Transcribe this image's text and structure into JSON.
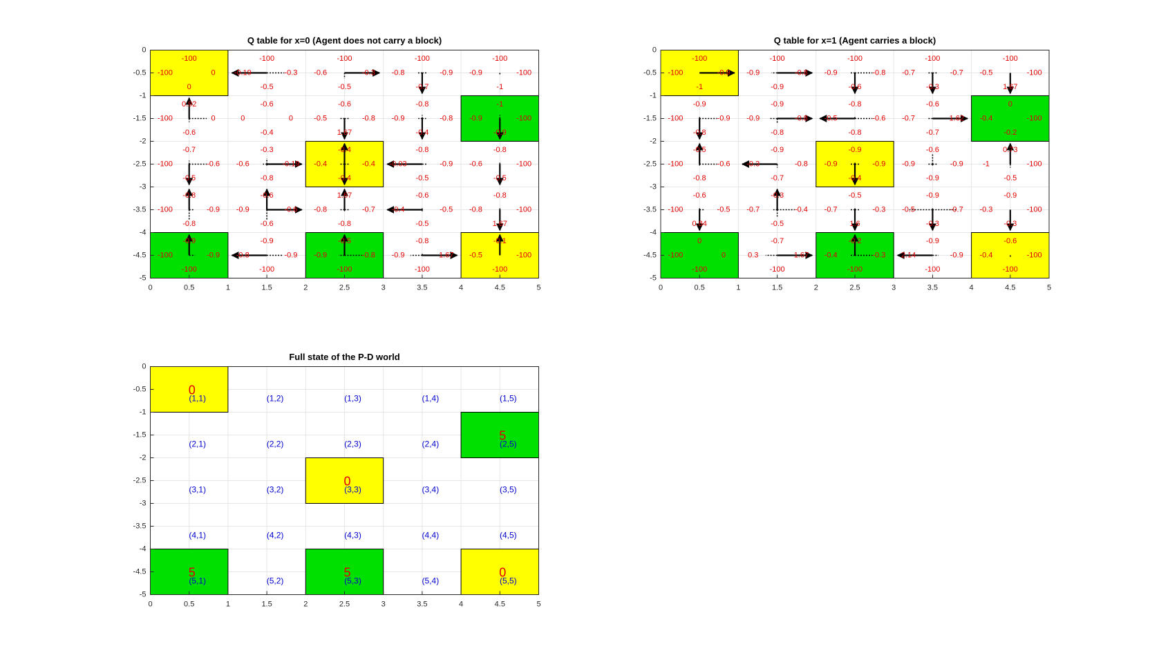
{
  "colors": {
    "pickup": "#ffff00",
    "dropoff": "#00e000",
    "qvalue_text": "#e00000",
    "coord_text": "#0000cc",
    "block_text": "#e00000",
    "grid": "#e6e6e6",
    "axes": "#262626",
    "arrow": "#000000"
  },
  "chart_data": [
    {
      "type": "heatmap",
      "title": "Q table for x=0 (Agent does not carry a block)",
      "xlim": [
        0,
        5
      ],
      "ylim": [
        -5,
        0
      ],
      "xticks": [
        "0",
        "0.5",
        "1",
        "1.5",
        "2",
        "2.5",
        "3",
        "3.5",
        "4",
        "4.5",
        "5"
      ],
      "yticks": [
        "0",
        "-0.5",
        "-1",
        "-1.5",
        "-2",
        "-2.5",
        "-3",
        "-3.5",
        "-4",
        "-4.5",
        "-5"
      ],
      "grid": true,
      "cells": [
        {
          "r": 1,
          "c": 1,
          "type": "pickup",
          "n": "-100",
          "w": "-100",
          "e": "0",
          "s": "0",
          "arrows": {
            "n": 0,
            "w": 0,
            "e": 0,
            "s": 0
          }
        },
        {
          "r": 1,
          "c": 2,
          "type": "",
          "n": "-100",
          "w": "-0.19",
          "e": "-0.3",
          "s": "-0.5",
          "arrows": {
            "n": 0,
            "w": 0.9,
            "e": 0.45,
            "s": 0
          }
        },
        {
          "r": 1,
          "c": 3,
          "type": "",
          "n": "-100",
          "w": "-0.6",
          "e": "-0.3",
          "s": "-0.5",
          "arrows": {
            "n": 0,
            "w": 0,
            "e": 0.9,
            "s": 0.25
          }
        },
        {
          "r": 1,
          "c": 4,
          "type": "",
          "n": "-100",
          "w": "-0.8",
          "e": "-0.9",
          "s": "-0.7",
          "arrows": {
            "n": 0,
            "w": 0.12,
            "e": 0.12,
            "s": 0.9
          }
        },
        {
          "r": 1,
          "c": 5,
          "type": "",
          "n": "-100",
          "w": "-0.9",
          "e": "-100",
          "s": "-1",
          "arrows": {
            "n": 0,
            "w": 0,
            "e": 0,
            "s": 0.1
          }
        },
        {
          "r": 2,
          "c": 1,
          "type": "",
          "n": "0.92",
          "w": "-100",
          "e": "0",
          "s": "-0.6",
          "arrows": {
            "n": 0.9,
            "w": 0,
            "e": 0.45,
            "s": 0.15
          }
        },
        {
          "r": 2,
          "c": 2,
          "type": "",
          "n": "-0.6",
          "w": "0",
          "e": "0",
          "s": "-0.4",
          "arrows": {
            "n": 0,
            "w": 0,
            "e": 0,
            "s": 0
          }
        },
        {
          "r": 2,
          "c": 3,
          "type": "",
          "n": "-0.6",
          "w": "-0.5",
          "e": "-0.8",
          "s": "1.67",
          "arrows": {
            "n": 0,
            "w": 0.12,
            "e": 0.12,
            "s": 0.9
          }
        },
        {
          "r": 2,
          "c": 4,
          "type": "",
          "n": "-0.8",
          "w": "-0.9",
          "e": "-0.8",
          "s": "-0.4",
          "arrows": {
            "n": 0.15,
            "w": 0.1,
            "e": 0.1,
            "s": 0.9
          }
        },
        {
          "r": 2,
          "c": 5,
          "type": "dropoff",
          "n": "-1",
          "w": "-0.9",
          "e": "-100",
          "s": "-0.9",
          "arrows": {
            "n": 0.15,
            "w": 0,
            "e": 0,
            "s": 0.9
          }
        },
        {
          "r": 3,
          "c": 1,
          "type": "",
          "n": "-0.7",
          "w": "-100",
          "e": "-0.6",
          "s": "-0.5",
          "arrows": {
            "n": 0.15,
            "w": 0,
            "e": 0.45,
            "s": 0.9
          }
        },
        {
          "r": 3,
          "c": 2,
          "type": "",
          "n": "-0.3",
          "w": "-0.6",
          "e": "-0.19",
          "s": "-0.8",
          "arrows": {
            "n": 0.25,
            "w": 0.1,
            "e": 0.9,
            "s": 0.1
          }
        },
        {
          "r": 3,
          "c": 3,
          "type": "pickup",
          "n": "-0.4",
          "w": "-0.4",
          "e": "-0.4",
          "s": "-0.4",
          "arrows": {
            "n": 0.9,
            "w": 0.12,
            "e": 0.12,
            "s": 0.9
          }
        },
        {
          "r": 3,
          "c": 4,
          "type": "",
          "n": "-0.8",
          "w": "-0.03",
          "e": "-0.9",
          "s": "-0.5",
          "arrows": {
            "n": 0,
            "w": 0.9,
            "e": 0.12,
            "s": 0
          }
        },
        {
          "r": 3,
          "c": 5,
          "type": "",
          "n": "-0.8",
          "w": "-0.6",
          "e": "-100",
          "s": "-0.5",
          "arrows": {
            "n": 0.1,
            "w": 0,
            "e": 0,
            "s": 0.9
          }
        },
        {
          "r": 4,
          "c": 1,
          "type": "",
          "n": "-0.8",
          "w": "-100",
          "e": "-0.9",
          "s": "-0.8",
          "arrows": {
            "n": 0.9,
            "w": 0,
            "e": 0.12,
            "s": 0.45
          }
        },
        {
          "r": 4,
          "c": 2,
          "type": "",
          "n": "-0.6",
          "w": "-0.9",
          "e": "-0.6",
          "s": "-0.6",
          "arrows": {
            "n": 0.9,
            "w": 0,
            "e": 0.9,
            "s": 0.45
          }
        },
        {
          "r": 4,
          "c": 3,
          "type": "",
          "n": "1.67",
          "w": "-0.8",
          "e": "-0.7",
          "s": "-0.8",
          "arrows": {
            "n": 0.9,
            "w": 0.12,
            "e": 0.12,
            "s": 0.12
          }
        },
        {
          "r": 4,
          "c": 4,
          "type": "",
          "n": "-0.6",
          "w": "-0.4",
          "e": "-0.5",
          "s": "-0.5",
          "arrows": {
            "n": 0.1,
            "w": 0.9,
            "e": 0,
            "s": 0.12
          }
        },
        {
          "r": 4,
          "c": 5,
          "type": "",
          "n": "-0.8",
          "w": "-0.8",
          "e": "-100",
          "s": "1.67",
          "arrows": {
            "n": 0.1,
            "w": 0,
            "e": 0,
            "s": 0.9
          }
        },
        {
          "r": 5,
          "c": 1,
          "type": "dropoff",
          "n": "-0.9",
          "w": "-100",
          "e": "-0.9",
          "s": "-100",
          "arrows": {
            "n": 0.9,
            "w": 0,
            "e": 0.15,
            "s": 0
          }
        },
        {
          "r": 5,
          "c": 2,
          "type": "",
          "n": "-0.9",
          "w": "-0.8",
          "e": "-0.9",
          "s": "-100",
          "arrows": {
            "n": 0,
            "w": 0.9,
            "e": 0.4,
            "s": 0
          }
        },
        {
          "r": 5,
          "c": 3,
          "type": "dropoff",
          "n": "-0.5",
          "w": "-0.9",
          "e": "-0.8",
          "s": "-100",
          "arrows": {
            "n": 0.9,
            "w": 0.15,
            "e": 0.45,
            "s": 0
          }
        },
        {
          "r": 5,
          "c": 4,
          "type": "",
          "n": "-0.8",
          "w": "-0.9",
          "e": "1.67",
          "s": "-100",
          "arrows": {
            "n": 0.12,
            "w": 0.3,
            "e": 0.9,
            "s": 0
          }
        },
        {
          "r": 5,
          "c": 5,
          "type": "pickup",
          "n": "-0.1",
          "w": "-0.5",
          "e": "-100",
          "s": "-100",
          "arrows": {
            "n": 0.9,
            "w": 0,
            "e": 0,
            "s": 0
          }
        }
      ]
    },
    {
      "type": "heatmap",
      "title": "Q table for x=1 (Agent carries a block)",
      "xlim": [
        0,
        5
      ],
      "ylim": [
        -5,
        0
      ],
      "xticks": [
        "0",
        "0.5",
        "1",
        "1.5",
        "2",
        "2.5",
        "3",
        "3.5",
        "4",
        "4.5",
        "5"
      ],
      "yticks": [
        "0",
        "-0.5",
        "-1",
        "-1.5",
        "-2",
        "-2.5",
        "-3",
        "-3.5",
        "-4",
        "-4.5",
        "-5"
      ],
      "grid": true,
      "cells": [
        {
          "r": 1,
          "c": 1,
          "type": "pickup",
          "n": "-100",
          "w": "-100",
          "e": "-0.9",
          "s": "-1",
          "arrows": {
            "n": 0,
            "w": 0,
            "e": 0.9,
            "s": 0
          }
        },
        {
          "r": 1,
          "c": 2,
          "type": "",
          "n": "-100",
          "w": "-0.9",
          "e": "-0.8",
          "s": "-0.9",
          "arrows": {
            "n": 0,
            "w": 0.15,
            "e": 0.9,
            "s": 0
          }
        },
        {
          "r": 1,
          "c": 3,
          "type": "",
          "n": "-100",
          "w": "-0.9",
          "e": "-0.8",
          "s": "-0.6",
          "arrows": {
            "n": 0,
            "w": 0.12,
            "e": 0.45,
            "s": 0.9
          }
        },
        {
          "r": 1,
          "c": 4,
          "type": "",
          "n": "-100",
          "w": "-0.7",
          "e": "-0.7",
          "s": "-0.3",
          "arrows": {
            "n": 0,
            "w": 0.12,
            "e": 0.12,
            "s": 0.9
          }
        },
        {
          "r": 1,
          "c": 5,
          "type": "",
          "n": "-100",
          "w": "-0.5",
          "e": "-100",
          "s": "1.67",
          "arrows": {
            "n": 0,
            "w": 0,
            "e": 0,
            "s": 0.9
          }
        },
        {
          "r": 2,
          "c": 1,
          "type": "",
          "n": "-0.9",
          "w": "-100",
          "e": "-0.9",
          "s": "-0.8",
          "arrows": {
            "n": 0.1,
            "w": 0,
            "e": 0.45,
            "s": 0.9
          }
        },
        {
          "r": 2,
          "c": 2,
          "type": "",
          "n": "-0.9",
          "w": "-0.9",
          "e": "-0.8",
          "s": "-0.8",
          "arrows": {
            "n": 0,
            "w": 0.2,
            "e": 0.9,
            "s": 0.2
          }
        },
        {
          "r": 2,
          "c": 3,
          "type": "",
          "n": "-0.8",
          "w": "-0.5",
          "e": "-0.6",
          "s": "-0.8",
          "arrows": {
            "n": 0.1,
            "w": 0.9,
            "e": 0.45,
            "s": 0
          }
        },
        {
          "r": 2,
          "c": 4,
          "type": "",
          "n": "-0.6",
          "w": "-0.7",
          "e": "1.62",
          "s": "-0.7",
          "arrows": {
            "n": 0,
            "w": 0.12,
            "e": 0.9,
            "s": 0
          }
        },
        {
          "r": 2,
          "c": 5,
          "type": "dropoff",
          "n": "0",
          "w": "-0.4",
          "e": "-100",
          "s": "-0.2",
          "arrows": {
            "n": 0,
            "w": 0,
            "e": 0,
            "s": 0
          }
        },
        {
          "r": 3,
          "c": 1,
          "type": "",
          "n": "-0.5",
          "w": "-100",
          "e": "-0.6",
          "s": "-0.8",
          "arrows": {
            "n": 0.9,
            "w": 0,
            "e": 0.45,
            "s": 0.1
          }
        },
        {
          "r": 3,
          "c": 2,
          "type": "",
          "n": "-0.9",
          "w": "-0.3",
          "e": "-0.8",
          "s": "-0.7",
          "arrows": {
            "n": 0,
            "w": 0.9,
            "e": 0,
            "s": 0.15
          }
        },
        {
          "r": 3,
          "c": 3,
          "type": "pickup",
          "n": "-0.9",
          "w": "-0.9",
          "e": "-0.9",
          "s": "-0.4",
          "arrows": {
            "n": 0.1,
            "w": 0.12,
            "e": 0.12,
            "s": 0.9
          }
        },
        {
          "r": 3,
          "c": 4,
          "type": "",
          "n": "-0.6",
          "w": "-0.9",
          "e": "-0.9",
          "s": "-0.9",
          "arrows": {
            "n": 0.45,
            "w": 0.12,
            "e": 0.12,
            "s": 0.12
          }
        },
        {
          "r": 3,
          "c": 5,
          "type": "",
          "n": "0.73",
          "w": "-1",
          "e": "-100",
          "s": "-0.5",
          "arrows": {
            "n": 0.9,
            "w": 0,
            "e": 0,
            "s": 0.15
          }
        },
        {
          "r": 4,
          "c": 1,
          "type": "",
          "n": "-0.6",
          "w": "-100",
          "e": "-0.5",
          "s": "0.84",
          "arrows": {
            "n": 0.1,
            "w": 0,
            "e": 0.12,
            "s": 0.9
          }
        },
        {
          "r": 4,
          "c": 2,
          "type": "",
          "n": "-0.3",
          "w": "-0.7",
          "e": "-0.4",
          "s": "-0.5",
          "arrows": {
            "n": 0.9,
            "w": 0.1,
            "e": 0.45,
            "s": 0.3
          }
        },
        {
          "r": 4,
          "c": 3,
          "type": "",
          "n": "-0.5",
          "w": "-0.7",
          "e": "-0.3",
          "s": "1.6",
          "arrows": {
            "n": 0.1,
            "w": 0.12,
            "e": 0.12,
            "s": 0.9
          }
        },
        {
          "r": 4,
          "c": 4,
          "type": "",
          "n": "-0.9",
          "w": "-0.5",
          "e": "-0.7",
          "s": "-0.3",
          "arrows": {
            "n": 0.1,
            "w": 0.6,
            "e": 0.6,
            "s": 0.9
          }
        },
        {
          "r": 4,
          "c": 5,
          "type": "",
          "n": "-0.9",
          "w": "-0.3",
          "e": "-100",
          "s": "-0.3",
          "arrows": {
            "n": 0,
            "w": 0,
            "e": 0,
            "s": 0.9
          }
        },
        {
          "r": 5,
          "c": 1,
          "type": "dropoff",
          "n": "0",
          "w": "-100",
          "e": "0",
          "s": "-100",
          "arrows": {
            "n": 0,
            "w": 0,
            "e": 0,
            "s": 0
          }
        },
        {
          "r": 5,
          "c": 2,
          "type": "",
          "n": "-0.7",
          "w": "0.3",
          "e": "1.67",
          "s": "-100",
          "arrows": {
            "n": 0,
            "w": 0.3,
            "e": 0.9,
            "s": 0
          }
        },
        {
          "r": 5,
          "c": 3,
          "type": "dropoff",
          "n": "-0.2",
          "w": "-0.4",
          "e": "-0.3",
          "s": "-100",
          "arrows": {
            "n": 0.9,
            "w": 0.12,
            "e": 0.45,
            "s": 0
          }
        },
        {
          "r": 5,
          "c": 4,
          "type": "",
          "n": "-0.9",
          "w": "2.14",
          "e": "-0.9",
          "s": "-100",
          "arrows": {
            "n": 0,
            "w": 0.9,
            "e": 0.15,
            "s": 0
          }
        },
        {
          "r": 5,
          "c": 5,
          "type": "pickup",
          "n": "-0.6",
          "w": "-0.4",
          "e": "-100",
          "s": "-100",
          "arrows": {
            "n": 0,
            "w": 0,
            "e": 0,
            "s": 0.1
          }
        }
      ]
    },
    {
      "type": "heatmap",
      "title": "Full state of the P-D world",
      "xlim": [
        0,
        5
      ],
      "ylim": [
        -5,
        0
      ],
      "xticks": [
        "0",
        "0.5",
        "1",
        "1.5",
        "2",
        "2.5",
        "3",
        "3.5",
        "4",
        "4.5",
        "5"
      ],
      "yticks": [
        "0",
        "-0.5",
        "-1",
        "-1.5",
        "-2",
        "-2.5",
        "-3",
        "-3.5",
        "-4",
        "-4.5",
        "-5"
      ],
      "grid": true,
      "cells": [
        {
          "r": 1,
          "c": 1,
          "type": "pickup",
          "label": "(1,1)",
          "blocks": "0"
        },
        {
          "r": 1,
          "c": 2,
          "type": "",
          "label": "(1,2)",
          "blocks": ""
        },
        {
          "r": 1,
          "c": 3,
          "type": "",
          "label": "(1,3)",
          "blocks": ""
        },
        {
          "r": 1,
          "c": 4,
          "type": "",
          "label": "(1,4)",
          "blocks": ""
        },
        {
          "r": 1,
          "c": 5,
          "type": "",
          "label": "(1,5)",
          "blocks": ""
        },
        {
          "r": 2,
          "c": 1,
          "type": "",
          "label": "(2,1)",
          "blocks": ""
        },
        {
          "r": 2,
          "c": 2,
          "type": "",
          "label": "(2,2)",
          "blocks": ""
        },
        {
          "r": 2,
          "c": 3,
          "type": "",
          "label": "(2,3)",
          "blocks": ""
        },
        {
          "r": 2,
          "c": 4,
          "type": "",
          "label": "(2,4)",
          "blocks": ""
        },
        {
          "r": 2,
          "c": 5,
          "type": "dropoff",
          "label": "(2,5)",
          "blocks": "5"
        },
        {
          "r": 3,
          "c": 1,
          "type": "",
          "label": "(3,1)",
          "blocks": ""
        },
        {
          "r": 3,
          "c": 2,
          "type": "",
          "label": "(3,2)",
          "blocks": ""
        },
        {
          "r": 3,
          "c": 3,
          "type": "pickup",
          "label": "(3,3)",
          "blocks": "0"
        },
        {
          "r": 3,
          "c": 4,
          "type": "",
          "label": "(3,4)",
          "blocks": ""
        },
        {
          "r": 3,
          "c": 5,
          "type": "",
          "label": "(3,5)",
          "blocks": ""
        },
        {
          "r": 4,
          "c": 1,
          "type": "",
          "label": "(4,1)",
          "blocks": ""
        },
        {
          "r": 4,
          "c": 2,
          "type": "",
          "label": "(4,2)",
          "blocks": ""
        },
        {
          "r": 4,
          "c": 3,
          "type": "",
          "label": "(4,3)",
          "blocks": ""
        },
        {
          "r": 4,
          "c": 4,
          "type": "",
          "label": "(4,4)",
          "blocks": ""
        },
        {
          "r": 4,
          "c": 5,
          "type": "",
          "label": "(4,5)",
          "blocks": ""
        },
        {
          "r": 5,
          "c": 1,
          "type": "dropoff",
          "label": "(5,1)",
          "blocks": "5"
        },
        {
          "r": 5,
          "c": 2,
          "type": "",
          "label": "(5,2)",
          "blocks": ""
        },
        {
          "r": 5,
          "c": 3,
          "type": "dropoff",
          "label": "(5,3)",
          "blocks": "5"
        },
        {
          "r": 5,
          "c": 4,
          "type": "",
          "label": "(5,4)",
          "blocks": ""
        },
        {
          "r": 5,
          "c": 5,
          "type": "pickup",
          "label": "(5,5)",
          "blocks": "0"
        }
      ]
    }
  ]
}
